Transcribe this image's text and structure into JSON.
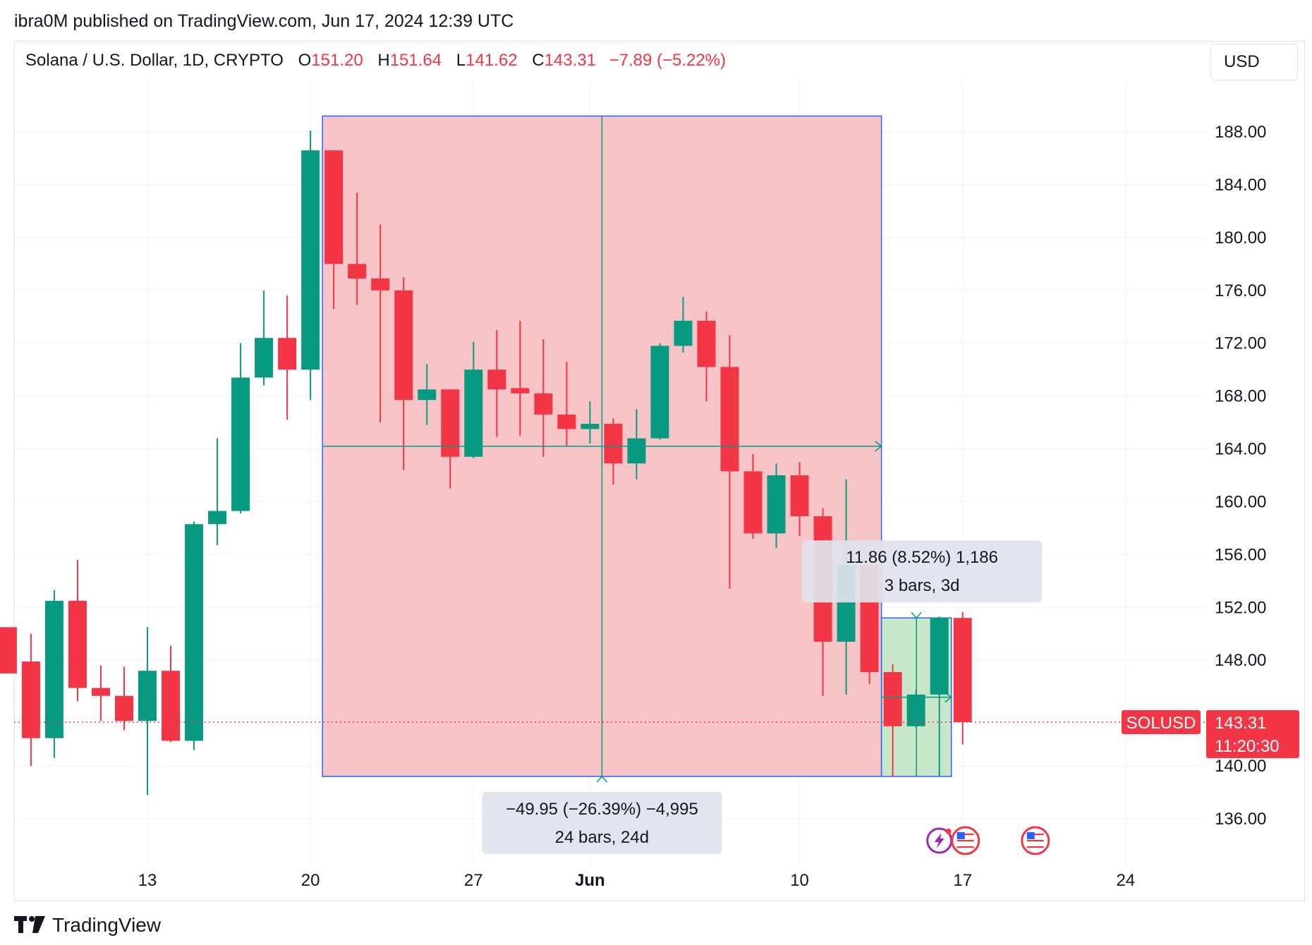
{
  "header": {
    "published": "ibra0M published on TradingView.com, Jun 17, 2024 12:39 UTC"
  },
  "legend": {
    "symbol": "Solana / U.S. Dollar, 1D, CRYPTO",
    "o_label": "O",
    "o_value": "151.20",
    "h_label": "H",
    "h_value": "151.64",
    "l_label": "L",
    "l_value": "141.62",
    "c_label": "C",
    "c_value": "143.31",
    "change": "−7.89 (−5.22%)"
  },
  "currency_button": "USD",
  "footer": {
    "brand": "TradingView"
  },
  "colors": {
    "up": "#089981",
    "down": "#f23645",
    "measure_down": "#f7c4c8",
    "measure_up": "#c8e6c9",
    "box_border": "#2962ff"
  },
  "chart_data": {
    "type": "candlestick",
    "y_ticks": [
      188,
      184,
      180,
      176,
      172,
      168,
      164,
      160,
      156,
      152,
      148,
      140,
      136
    ],
    "y_tick_labels": [
      "188.00",
      "184.00",
      "180.00",
      "176.00",
      "172.00",
      "168.00",
      "164.00",
      "160.00",
      "156.00",
      "152.00",
      "148.00",
      "140.00",
      "136.00"
    ],
    "ylim": [
      133,
      193
    ],
    "x_ticks": [
      {
        "label": "13",
        "date": "2024-05-13",
        "bold": false
      },
      {
        "label": "20",
        "date": "2024-05-20",
        "bold": false
      },
      {
        "label": "27",
        "date": "2024-05-27",
        "bold": false
      },
      {
        "label": "Jun",
        "date": "2024-06-01",
        "bold": true
      },
      {
        "label": "10",
        "date": "2024-06-10",
        "bold": false
      },
      {
        "label": "17",
        "date": "2024-06-17",
        "bold": false
      },
      {
        "label": "24",
        "date": "2024-06-24",
        "bold": false
      }
    ],
    "candles": [
      {
        "date": "2024-05-07",
        "o": 150.5,
        "h": 150.5,
        "l": 147.0,
        "c": 147.0
      },
      {
        "date": "2024-05-08",
        "o": 147.9,
        "h": 150.0,
        "l": 140.0,
        "c": 142.1
      },
      {
        "date": "2024-05-09",
        "o": 142.1,
        "h": 153.3,
        "l": 140.6,
        "c": 152.5
      },
      {
        "date": "2024-05-10",
        "o": 152.5,
        "h": 155.6,
        "l": 144.9,
        "c": 145.9
      },
      {
        "date": "2024-05-11",
        "o": 145.9,
        "h": 147.6,
        "l": 143.4,
        "c": 145.3
      },
      {
        "date": "2024-05-12",
        "o": 145.3,
        "h": 147.5,
        "l": 142.7,
        "c": 143.4
      },
      {
        "date": "2024-05-13",
        "o": 143.4,
        "h": 150.5,
        "l": 137.8,
        "c": 147.2
      },
      {
        "date": "2024-05-14",
        "o": 147.2,
        "h": 149.1,
        "l": 141.8,
        "c": 141.9
      },
      {
        "date": "2024-05-15",
        "o": 141.9,
        "h": 158.5,
        "l": 141.2,
        "c": 158.3
      },
      {
        "date": "2024-05-16",
        "o": 158.3,
        "h": 164.8,
        "l": 156.7,
        "c": 159.3
      },
      {
        "date": "2024-05-17",
        "o": 159.3,
        "h": 172.0,
        "l": 159.1,
        "c": 169.4
      },
      {
        "date": "2024-05-18",
        "o": 169.4,
        "h": 176.0,
        "l": 168.8,
        "c": 172.4
      },
      {
        "date": "2024-05-19",
        "o": 172.4,
        "h": 175.6,
        "l": 166.2,
        "c": 170.0
      },
      {
        "date": "2024-05-20",
        "o": 170.0,
        "h": 188.1,
        "l": 167.7,
        "c": 186.6
      },
      {
        "date": "2024-05-21",
        "o": 186.6,
        "h": 186.6,
        "l": 174.6,
        "c": 178.0
      },
      {
        "date": "2024-05-22",
        "o": 178.0,
        "h": 183.4,
        "l": 174.9,
        "c": 176.9
      },
      {
        "date": "2024-05-23",
        "o": 176.9,
        "h": 181.0,
        "l": 166.0,
        "c": 176.0
      },
      {
        "date": "2024-05-24",
        "o": 176.0,
        "h": 177.0,
        "l": 162.4,
        "c": 167.7
      },
      {
        "date": "2024-05-25",
        "o": 167.7,
        "h": 170.4,
        "l": 165.8,
        "c": 168.5
      },
      {
        "date": "2024-05-26",
        "o": 168.5,
        "h": 168.5,
        "l": 161.0,
        "c": 163.4
      },
      {
        "date": "2024-05-27",
        "o": 163.4,
        "h": 172.1,
        "l": 163.3,
        "c": 170.0
      },
      {
        "date": "2024-05-28",
        "o": 170.0,
        "h": 173.0,
        "l": 164.9,
        "c": 168.5
      },
      {
        "date": "2024-05-29",
        "o": 168.6,
        "h": 173.7,
        "l": 165.0,
        "c": 168.2
      },
      {
        "date": "2024-05-30",
        "o": 168.2,
        "h": 172.3,
        "l": 163.4,
        "c": 166.6
      },
      {
        "date": "2024-05-31",
        "o": 166.6,
        "h": 170.6,
        "l": 164.2,
        "c": 165.5
      },
      {
        "date": "2024-06-01",
        "o": 165.5,
        "h": 167.6,
        "l": 164.4,
        "c": 165.9
      },
      {
        "date": "2024-06-02",
        "o": 165.9,
        "h": 166.3,
        "l": 161.3,
        "c": 162.9
      },
      {
        "date": "2024-06-03",
        "o": 162.9,
        "h": 167.0,
        "l": 161.7,
        "c": 164.8
      },
      {
        "date": "2024-06-04",
        "o": 164.8,
        "h": 172.0,
        "l": 164.7,
        "c": 171.8
      },
      {
        "date": "2024-06-05",
        "o": 171.8,
        "h": 175.5,
        "l": 171.3,
        "c": 173.7
      },
      {
        "date": "2024-06-06",
        "o": 173.7,
        "h": 174.4,
        "l": 167.6,
        "c": 170.2
      },
      {
        "date": "2024-06-07",
        "o": 170.2,
        "h": 172.6,
        "l": 153.4,
        "c": 162.3
      },
      {
        "date": "2024-06-08",
        "o": 162.3,
        "h": 163.6,
        "l": 157.2,
        "c": 157.6
      },
      {
        "date": "2024-06-09",
        "o": 157.6,
        "h": 162.9,
        "l": 156.5,
        "c": 162.0
      },
      {
        "date": "2024-06-10",
        "o": 162.0,
        "h": 163.0,
        "l": 157.4,
        "c": 158.9
      },
      {
        "date": "2024-06-11",
        "o": 158.9,
        "h": 159.5,
        "l": 145.3,
        "c": 149.4
      },
      {
        "date": "2024-06-12",
        "o": 149.4,
        "h": 161.7,
        "l": 145.4,
        "c": 155.2
      },
      {
        "date": "2024-06-13",
        "o": 155.2,
        "h": 155.2,
        "l": 146.2,
        "c": 147.1
      },
      {
        "date": "2024-06-14",
        "o": 147.1,
        "h": 147.7,
        "l": 139.2,
        "c": 143.0
      },
      {
        "date": "2024-06-15",
        "o": 143.0,
        "h": 145.8,
        "l": 142.9,
        "c": 145.4
      },
      {
        "date": "2024-06-16",
        "o": 145.4,
        "h": 151.3,
        "l": 139.2,
        "c": 151.2
      },
      {
        "date": "2024-06-17",
        "o": 151.2,
        "h": 151.64,
        "l": 141.62,
        "c": 143.31
      }
    ],
    "last_price": {
      "symbol": "SOLUSD",
      "price": "143.31",
      "countdown": "11:20:30",
      "value": 143.31
    },
    "measurements": [
      {
        "direction": "down",
        "from_date": "2024-05-21",
        "to_date": "2024-06-14",
        "high": 189.2,
        "low": 139.2,
        "line1": "−49.95 (−26.39%) −4,995",
        "line2": "24 bars, 24d"
      },
      {
        "direction": "up",
        "from_date": "2024-06-14",
        "to_date": "2024-06-17",
        "high": 151.2,
        "low": 139.2,
        "line1": "11.86 (8.52%) 1,186",
        "line2": "3 bars, 3d"
      }
    ],
    "events": [
      {
        "date": "2024-06-16",
        "icon": "lightning-icon"
      },
      {
        "date": "2024-06-17",
        "icon": "us-flag-icon"
      },
      {
        "date": "2024-06-20",
        "icon": "us-flag-icon"
      }
    ]
  }
}
